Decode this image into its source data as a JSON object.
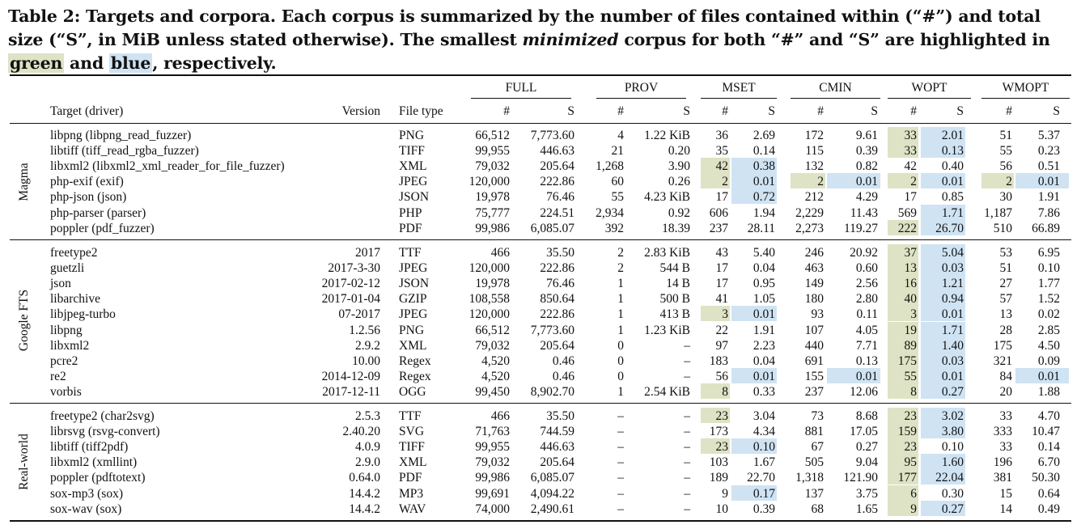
{
  "caption": {
    "p1": "Table 2: Targets and corpora. Each corpus is summarized by the number of files contained within (“#”) and total size (“S”, in MiB unless stated otherwise). The smallest ",
    "em": "minimized",
    "p2": " corpus for both “#” and “S” are highlighted in ",
    "green": "green",
    "p3": " and ",
    "blue": "blue",
    "p4": ", respectively."
  },
  "header": {
    "target": "Target (driver)",
    "version": "Version",
    "filetype": "File type",
    "groups": [
      "FULL",
      "PROV",
      "MSET",
      "CMIN",
      "WOPT",
      "WMOPT"
    ],
    "hash": "#",
    "size": "S"
  },
  "sections": [
    {
      "name": "Magma",
      "rows": [
        [
          "libpng (libpng_read_fuzzer)",
          "",
          "PNG",
          "66,512",
          "7,773.60",
          "4",
          "1.22 KiB",
          "36",
          "2.69",
          "172",
          "9.61",
          "33",
          "2.01",
          "51",
          "5.37"
        ],
        [
          "libtiff (tiff_read_rgba_fuzzer)",
          "",
          "TIFF",
          "99,955",
          "446.63",
          "21",
          "0.20",
          "35",
          "0.14",
          "115",
          "0.39",
          "33",
          "0.13",
          "55",
          "0.23"
        ],
        [
          "libxml2 (libxml2_xml_reader_for_file_fuzzer)",
          "",
          "XML",
          "79,032",
          "205.64",
          "1,268",
          "3.90",
          "42",
          "0.38",
          "132",
          "0.82",
          "42",
          "0.40",
          "56",
          "0.51"
        ],
        [
          "php-exif (exif)",
          "",
          "JPEG",
          "120,000",
          "222.86",
          "60",
          "0.26",
          "2",
          "0.01",
          "2",
          "0.01",
          "2",
          "0.01",
          "2",
          "0.01"
        ],
        [
          "php-json (json)",
          "",
          "JSON",
          "19,978",
          "76.46",
          "55",
          "4.23 KiB",
          "17",
          "0.72",
          "212",
          "4.29",
          "17",
          "0.85",
          "30",
          "1.91"
        ],
        [
          "php-parser (parser)",
          "",
          "PHP",
          "75,777",
          "224.51",
          "2,934",
          "0.92",
          "606",
          "1.94",
          "2,229",
          "11.43",
          "569",
          "1.71",
          "1,187",
          "7.86"
        ],
        [
          "poppler (pdf_fuzzer)",
          "",
          "PDF",
          "99,986",
          "6,085.07",
          "392",
          "18.39",
          "237",
          "28.11",
          "2,273",
          "119.27",
          "222",
          "26.70",
          "510",
          "66.89"
        ]
      ]
    },
    {
      "name": "Google FTS",
      "rows": [
        [
          "freetype2",
          "2017",
          "TTF",
          "466",
          "35.50",
          "2",
          "2.83 KiB",
          "43",
          "5.40",
          "246",
          "20.92",
          "37",
          "5.04",
          "53",
          "6.95"
        ],
        [
          "guetzli",
          "2017-3-30",
          "JPEG",
          "120,000",
          "222.86",
          "2",
          "544 B",
          "17",
          "0.04",
          "463",
          "0.60",
          "13",
          "0.03",
          "51",
          "0.10"
        ],
        [
          "json",
          "2017-02-12",
          "JSON",
          "19,978",
          "76.46",
          "1",
          "14 B",
          "17",
          "0.95",
          "149",
          "2.56",
          "16",
          "1.21",
          "27",
          "1.77"
        ],
        [
          "libarchive",
          "2017-01-04",
          "GZIP",
          "108,558",
          "850.64",
          "1",
          "500 B",
          "41",
          "1.05",
          "180",
          "2.80",
          "40",
          "0.94",
          "57",
          "1.52"
        ],
        [
          "libjpeg-turbo",
          "07-2017",
          "JPEG",
          "120,000",
          "222.86",
          "1",
          "413 B",
          "3",
          "0.01",
          "93",
          "0.11",
          "3",
          "0.01",
          "13",
          "0.02"
        ],
        [
          "libpng",
          "1.2.56",
          "PNG",
          "66,512",
          "7,773.60",
          "1",
          "1.23 KiB",
          "22",
          "1.91",
          "107",
          "4.05",
          "19",
          "1.71",
          "28",
          "2.85"
        ],
        [
          "libxml2",
          "2.9.2",
          "XML",
          "79,032",
          "205.64",
          "0",
          "–",
          "97",
          "2.23",
          "440",
          "7.71",
          "89",
          "1.40",
          "175",
          "4.50"
        ],
        [
          "pcre2",
          "10.00",
          "Regex",
          "4,520",
          "0.46",
          "0",
          "–",
          "183",
          "0.04",
          "691",
          "0.13",
          "175",
          "0.03",
          "321",
          "0.09"
        ],
        [
          "re2",
          "2014-12-09",
          "Regex",
          "4,520",
          "0.46",
          "0",
          "–",
          "56",
          "0.01",
          "155",
          "0.01",
          "55",
          "0.01",
          "84",
          "0.01"
        ],
        [
          "vorbis",
          "2017-12-11",
          "OGG",
          "99,450",
          "8,902.70",
          "1",
          "2.54 KiB",
          "8",
          "0.33",
          "237",
          "12.06",
          "8",
          "0.27",
          "20",
          "1.88"
        ]
      ]
    },
    {
      "name": "Real-world",
      "rows": [
        [
          "freetype2 (char2svg)",
          "2.5.3",
          "TTF",
          "466",
          "35.50",
          "–",
          "–",
          "23",
          "3.04",
          "73",
          "8.68",
          "23",
          "3.02",
          "33",
          "4.70"
        ],
        [
          "librsvg (rsvg-convert)",
          "2.40.20",
          "SVG",
          "71,763",
          "744.59",
          "–",
          "–",
          "173",
          "4.34",
          "881",
          "17.05",
          "159",
          "3.80",
          "333",
          "10.47"
        ],
        [
          "libtiff (tiff2pdf)",
          "4.0.9",
          "TIFF",
          "99,955",
          "446.63",
          "–",
          "–",
          "23",
          "0.10",
          "67",
          "0.27",
          "23",
          "0.10",
          "33",
          "0.14"
        ],
        [
          "libxml2 (xmllint)",
          "2.9.0",
          "XML",
          "79,032",
          "205.64",
          "–",
          "–",
          "103",
          "1.67",
          "505",
          "9.04",
          "95",
          "1.60",
          "196",
          "6.70"
        ],
        [
          "poppler (pdftotext)",
          "0.64.0",
          "PDF",
          "99,986",
          "6,085.07",
          "–",
          "–",
          "189",
          "22.70",
          "1,318",
          "121.90",
          "177",
          "22.04",
          "381",
          "50.30"
        ],
        [
          "sox-mp3 (sox)",
          "14.4.2",
          "MP3",
          "99,691",
          "4,094.22",
          "–",
          "–",
          "9",
          "0.17",
          "137",
          "3.75",
          "6",
          "0.30",
          "15",
          "0.64"
        ],
        [
          "sox-wav (sox)",
          "14.4.2",
          "WAV",
          "74,000",
          "2,490.61",
          "–",
          "–",
          "10",
          "0.39",
          "68",
          "1.65",
          "9",
          "0.27",
          "14",
          "0.49"
        ]
      ]
    }
  ],
  "highlights": {
    "colors": {
      "green": "#dde3c4",
      "blue": "#cfe3f3"
    },
    "green_cells": [
      [
        0,
        0,
        11
      ],
      [
        0,
        1,
        11
      ],
      [
        0,
        2,
        7
      ],
      [
        0,
        3,
        7
      ],
      [
        0,
        3,
        9
      ],
      [
        0,
        3,
        11
      ],
      [
        0,
        3,
        13
      ],
      [
        0,
        6,
        11
      ],
      [
        1,
        0,
        11
      ],
      [
        1,
        1,
        11
      ],
      [
        1,
        2,
        11
      ],
      [
        1,
        3,
        11
      ],
      [
        1,
        4,
        7
      ],
      [
        1,
        4,
        11
      ],
      [
        1,
        5,
        11
      ],
      [
        1,
        6,
        11
      ],
      [
        1,
        7,
        11
      ],
      [
        1,
        8,
        11
      ],
      [
        1,
        9,
        7
      ],
      [
        1,
        9,
        11
      ],
      [
        2,
        0,
        7
      ],
      [
        2,
        0,
        11
      ],
      [
        2,
        1,
        11
      ],
      [
        2,
        2,
        7
      ],
      [
        2,
        2,
        11
      ],
      [
        2,
        3,
        11
      ],
      [
        2,
        4,
        11
      ],
      [
        2,
        5,
        11
      ],
      [
        2,
        6,
        11
      ]
    ],
    "blue_cells": [
      [
        0,
        0,
        12
      ],
      [
        0,
        1,
        12
      ],
      [
        0,
        2,
        8
      ],
      [
        0,
        3,
        8
      ],
      [
        0,
        3,
        10
      ],
      [
        0,
        3,
        12
      ],
      [
        0,
        3,
        14
      ],
      [
        0,
        4,
        8
      ],
      [
        0,
        5,
        12
      ],
      [
        0,
        6,
        12
      ],
      [
        1,
        0,
        12
      ],
      [
        1,
        1,
        12
      ],
      [
        1,
        2,
        12
      ],
      [
        1,
        3,
        12
      ],
      [
        1,
        4,
        8
      ],
      [
        1,
        4,
        12
      ],
      [
        1,
        5,
        12
      ],
      [
        1,
        6,
        12
      ],
      [
        1,
        7,
        12
      ],
      [
        1,
        8,
        8
      ],
      [
        1,
        8,
        10
      ],
      [
        1,
        8,
        12
      ],
      [
        1,
        8,
        14
      ],
      [
        1,
        9,
        12
      ],
      [
        2,
        0,
        12
      ],
      [
        2,
        1,
        12
      ],
      [
        2,
        2,
        8
      ],
      [
        2,
        3,
        12
      ],
      [
        2,
        4,
        12
      ],
      [
        2,
        5,
        8
      ],
      [
        2,
        6,
        12
      ]
    ]
  }
}
